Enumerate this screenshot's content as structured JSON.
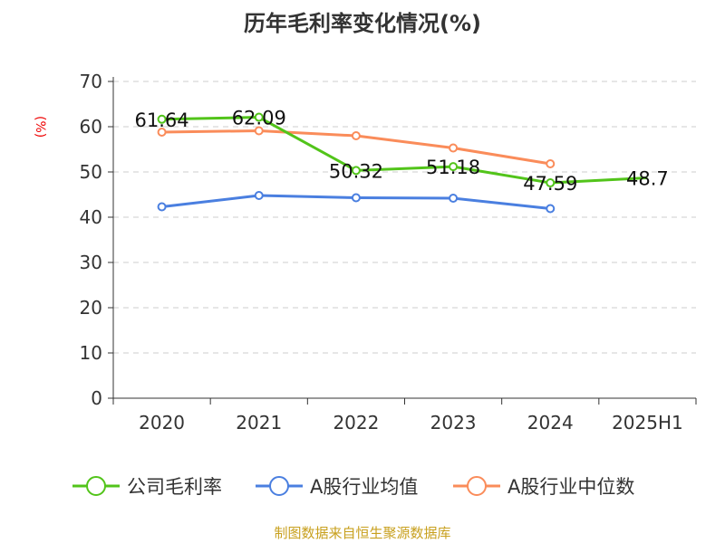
{
  "chart_data": {
    "type": "line",
    "title": "历年毛利率变化情况(%)",
    "ylabel": "(%)",
    "xlabel": "",
    "categories": [
      "2020",
      "2021",
      "2022",
      "2023",
      "2024",
      "2025H1"
    ],
    "ylim": [
      0,
      70
    ],
    "yticks": [
      0,
      10,
      20,
      30,
      40,
      50,
      60,
      70
    ],
    "grid": true,
    "legend_position": "bottom",
    "series": [
      {
        "name": "公司毛利率",
        "color": "#52c41a",
        "values": [
          61.64,
          62.09,
          50.32,
          51.18,
          47.59,
          48.7
        ],
        "labels": [
          "61.64",
          "62.09",
          "50.32",
          "51.18",
          "47.59",
          "48.7"
        ]
      },
      {
        "name": "A股行业均值",
        "color": "#4a7fe0",
        "values": [
          42.3,
          44.8,
          44.3,
          44.2,
          41.9,
          null
        ]
      },
      {
        "name": "A股行业中位数",
        "color": "#fa8c5a",
        "values": [
          58.8,
          59.1,
          58.0,
          55.3,
          51.8,
          null
        ]
      }
    ]
  },
  "source": "制图数据来自恒生聚源数据库"
}
